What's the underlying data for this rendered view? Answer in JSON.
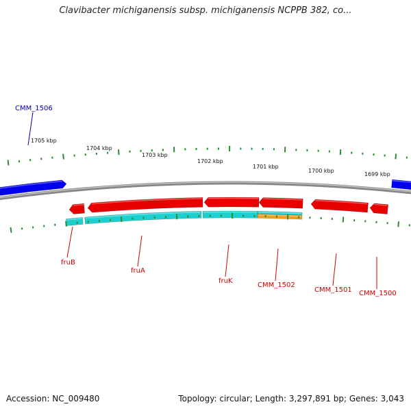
{
  "title": "Clavibacter michiganensis subsp. michiganensis NCPPB 382, co...",
  "footer": {
    "accession": "Accession: NC_009480",
    "info": "Topology: circular; Length: 3,297,891 bp; Genes: 3,043"
  },
  "colors": {
    "backbone": "#888888",
    "tick": "#2e8b2e",
    "forward_gene": "#0000ee",
    "reverse_gene": "#e80000",
    "cds_cyan": "#1ecfcf",
    "cds_orange": "#f0a020",
    "label_red": "#cc0000",
    "label_blue": "#0000aa"
  },
  "scale": {
    "unit": "kbp",
    "kbp_labels": [
      "1705 kbp",
      "1704 kbp",
      "1703 kbp",
      "1702 kbp",
      "1701 kbp",
      "1700 kbp",
      "1699 kbp"
    ]
  },
  "genes": [
    {
      "name": "CMM_1506",
      "strand": "+",
      "color": "blue"
    },
    {
      "name": "fruB",
      "strand": "-",
      "color": "red"
    },
    {
      "name": "fruA",
      "strand": "-",
      "color": "red"
    },
    {
      "name": "fruK",
      "strand": "-",
      "color": "red"
    },
    {
      "name": "CMM_1502",
      "strand": "-",
      "color": "red"
    },
    {
      "name": "CMM_1501",
      "strand": "-",
      "color": "red"
    },
    {
      "name": "CMM_1500",
      "strand": "-",
      "color": "red"
    }
  ]
}
